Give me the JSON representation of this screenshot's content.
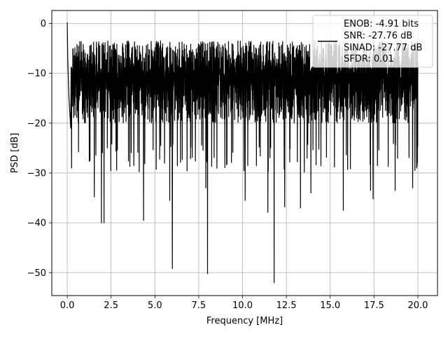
{
  "chart_data": {
    "type": "line",
    "title": "",
    "xlabel": "Frequency [MHz]",
    "ylabel": "PSD [dB]",
    "xlim": [
      -0.88,
      21.12
    ],
    "ylim": [
      -54.6,
      2.6
    ],
    "grid": true,
    "x_ticks": [
      0.0,
      2.5,
      5.0,
      7.5,
      10.0,
      12.5,
      15.0,
      17.5,
      20.0
    ],
    "x_tick_labels": [
      "0.0",
      "2.5",
      "5.0",
      "7.5",
      "10.0",
      "12.5",
      "15.0",
      "17.5",
      "20.0"
    ],
    "y_ticks": [
      0,
      -10,
      -20,
      -30,
      -40,
      -50
    ],
    "y_tick_labels": [
      "0",
      "−10",
      "−20",
      "−30",
      "−40",
      "−50"
    ],
    "legend": {
      "placement": "top-right",
      "entries": [
        "ENOB: -4.91 bits",
        "SNR: -27.76 dB",
        "SINAD: -27.77 dB",
        "SFDR: 0.01"
      ]
    },
    "series": [
      {
        "color": "#000000",
        "description_noise_band": {
          "upper_envelope_db": -3.5,
          "lower_envelope_db": -24.0,
          "x_start": 0.0,
          "x_end": 20.0
        },
        "peaks": [
          [
            0.0,
            0.2
          ],
          [
            0.03,
            -7.0
          ],
          [
            0.1,
            -15.0
          ],
          [
            0.2,
            -21.0
          ]
        ],
        "dips": [
          [
            0.25,
            -29.0
          ],
          [
            1.3,
            -27.5
          ],
          [
            1.55,
            -34.8
          ],
          [
            1.95,
            -40.0
          ],
          [
            2.1,
            -40.0
          ],
          [
            3.8,
            -28.5
          ],
          [
            4.35,
            -39.5
          ],
          [
            5.85,
            -35.5
          ],
          [
            6.0,
            -49.2
          ],
          [
            7.9,
            -33.0
          ],
          [
            8.0,
            -50.2
          ],
          [
            10.15,
            -35.5
          ],
          [
            11.45,
            -37.9
          ],
          [
            11.8,
            -52.0
          ],
          [
            12.4,
            -36.8
          ],
          [
            13.3,
            -37.0
          ],
          [
            13.9,
            -34.0
          ],
          [
            15.75,
            -37.5
          ],
          [
            17.3,
            -33.5
          ],
          [
            17.45,
            -35.2
          ],
          [
            18.7,
            -33.5
          ],
          [
            19.7,
            -33.0
          ]
        ]
      }
    ]
  }
}
